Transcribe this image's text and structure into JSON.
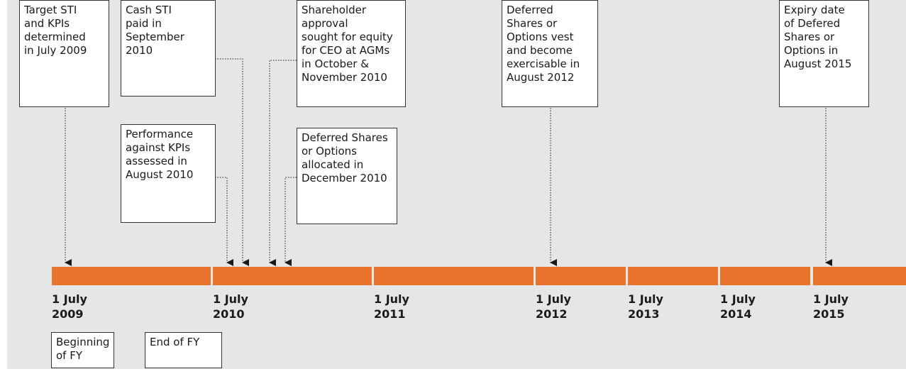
{
  "boxes": [
    {
      "lines": [
        "Target STI",
        "and KPIs",
        "determined",
        "in July 2009"
      ]
    },
    {
      "lines": [
        "Cash STI",
        "paid in",
        "September",
        "2010"
      ]
    },
    {
      "lines": [
        "Performance",
        "against KPIs",
        "assessed in",
        "August 2010"
      ]
    },
    {
      "lines": [
        "Shareholder",
        "approval",
        "sought for equity",
        "for CEO at AGMs",
        "in October &",
        "November 2010"
      ]
    },
    {
      "lines": [
        "Deferred Shares",
        "or Options",
        "allocated in",
        "December 2010"
      ]
    },
    {
      "lines": [
        "Deferred",
        "Shares or",
        "Options vest",
        "and become",
        "exercisable in",
        "August 2012"
      ]
    },
    {
      "lines": [
        "Expiry date",
        "of Defered",
        "Shares or",
        "Options in",
        "August 2015"
      ]
    }
  ],
  "timeline": {
    "labels": [
      {
        "day": "1 July",
        "year": "2009"
      },
      {
        "day": "1 July",
        "year": "2010"
      },
      {
        "day": "1 July",
        "year": "2011"
      },
      {
        "day": "1 July",
        "year": "2012"
      },
      {
        "day": "1 July",
        "year": "2013"
      },
      {
        "day": "1 July",
        "year": "2014"
      },
      {
        "day": "1 July",
        "year": "2015"
      }
    ]
  },
  "legend": [
    {
      "lines": [
        "Beginning",
        "of FY"
      ]
    },
    {
      "lines": [
        "End of FY"
      ]
    }
  ]
}
